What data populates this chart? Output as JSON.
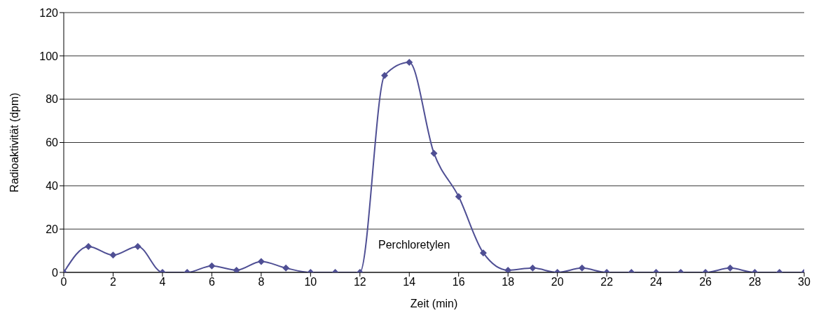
{
  "chart_data": {
    "type": "line",
    "xlabel": "Zeit (min)",
    "ylabel": "Radioaktivität (dpm)",
    "x": [
      0,
      1,
      2,
      3,
      4,
      5,
      6,
      7,
      8,
      9,
      10,
      11,
      12,
      13,
      14,
      15,
      16,
      17,
      18,
      19,
      20,
      21,
      22,
      23,
      24,
      25,
      26,
      27,
      28,
      29,
      30
    ],
    "series": [
      {
        "color": "#4f4f94",
        "values": [
          0,
          12,
          8,
          12,
          0,
          0,
          3,
          1,
          5,
          2,
          0,
          0,
          0,
          91,
          97,
          55,
          35,
          9,
          1,
          2,
          0,
          2,
          0,
          0,
          0,
          0,
          0,
          2,
          0,
          0,
          0
        ]
      }
    ],
    "xlim": [
      0,
      30
    ],
    "xticks": [
      0,
      2,
      4,
      6,
      8,
      10,
      12,
      14,
      16,
      18,
      20,
      22,
      24,
      26,
      28,
      30
    ],
    "ylim": [
      0,
      120
    ],
    "yticks": [
      0,
      20,
      40,
      60,
      80,
      100,
      120
    ],
    "grid": "y",
    "marker": "diamond",
    "line_style": "solid",
    "annotations": [
      "Perchloretylen"
    ]
  }
}
